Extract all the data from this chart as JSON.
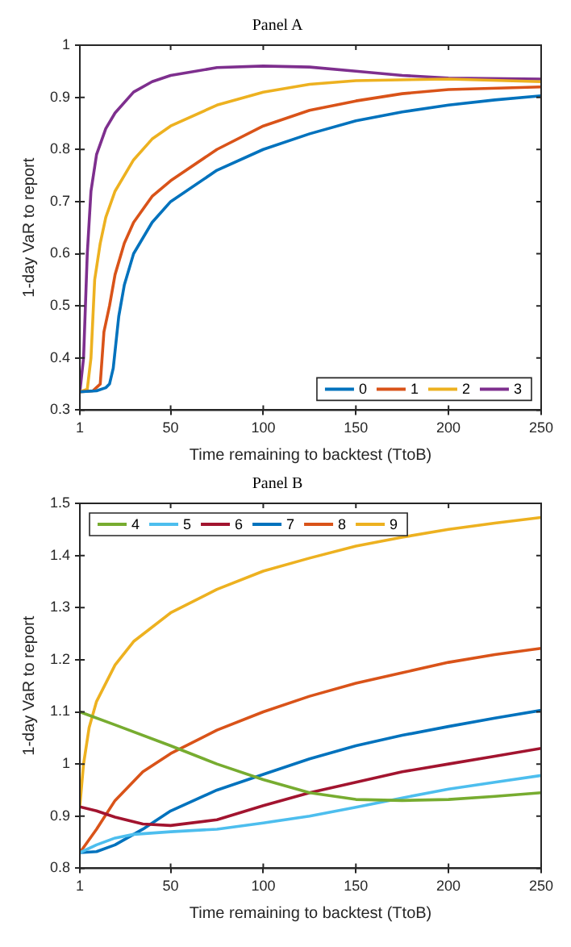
{
  "chart_data": [
    {
      "type": "line",
      "title": "Panel A",
      "xlabel": "Time remaining to backtest (TtoB)",
      "ylabel": "1-day VaR to report",
      "xlim": [
        1,
        250
      ],
      "xticks": [
        1,
        50,
        100,
        150,
        200,
        250
      ],
      "ylim": [
        0.3,
        1
      ],
      "yticks": [
        0.3,
        0.4,
        0.5,
        0.6,
        0.7,
        0.8,
        0.9,
        1
      ],
      "grid": false,
      "legend": "bottom right",
      "marker": "none",
      "line_style": "solid",
      "series": [
        {
          "name": "0",
          "color": "#0072bd",
          "x": [
            1,
            10,
            15,
            17,
            19,
            22,
            25,
            30,
            40,
            50,
            75,
            100,
            125,
            150,
            175,
            200,
            225,
            250
          ],
          "values": [
            0.335,
            0.337,
            0.343,
            0.35,
            0.38,
            0.48,
            0.54,
            0.6,
            0.66,
            0.7,
            0.76,
            0.8,
            0.83,
            0.855,
            0.872,
            0.885,
            0.895,
            0.903
          ]
        },
        {
          "name": "1",
          "color": "#d95319",
          "x": [
            1,
            8,
            12,
            14,
            17,
            20,
            25,
            30,
            40,
            50,
            75,
            100,
            125,
            150,
            175,
            200,
            250
          ],
          "values": [
            0.335,
            0.337,
            0.35,
            0.45,
            0.5,
            0.56,
            0.62,
            0.66,
            0.71,
            0.74,
            0.8,
            0.845,
            0.875,
            0.893,
            0.907,
            0.915,
            0.92
          ]
        },
        {
          "name": "2",
          "color": "#edb120",
          "x": [
            1,
            5,
            7,
            9,
            12,
            15,
            20,
            30,
            40,
            50,
            75,
            100,
            125,
            150,
            200,
            250
          ],
          "values": [
            0.335,
            0.34,
            0.4,
            0.55,
            0.62,
            0.67,
            0.72,
            0.78,
            0.82,
            0.845,
            0.885,
            0.91,
            0.925,
            0.932,
            0.935,
            0.93
          ]
        },
        {
          "name": "3",
          "color": "#7e2f8e",
          "x": [
            1,
            3,
            5,
            7,
            10,
            15,
            20,
            30,
            40,
            50,
            75,
            100,
            125,
            150,
            175,
            200,
            250
          ],
          "values": [
            0.335,
            0.4,
            0.6,
            0.72,
            0.79,
            0.84,
            0.87,
            0.91,
            0.93,
            0.942,
            0.957,
            0.96,
            0.958,
            0.95,
            0.942,
            0.937,
            0.935
          ]
        }
      ]
    },
    {
      "type": "line",
      "title": "Panel B",
      "xlabel": "Time remaining to backtest (TtoB)",
      "ylabel": "1-day VaR to report",
      "xlim": [
        1,
        250
      ],
      "xticks": [
        1,
        50,
        100,
        150,
        200,
        250
      ],
      "ylim": [
        0.8,
        1.5
      ],
      "yticks": [
        0.8,
        0.9,
        1,
        1.1,
        1.2,
        1.3,
        1.4,
        1.5
      ],
      "grid": false,
      "legend": "top left",
      "marker": "none",
      "line_style": "solid",
      "series": [
        {
          "name": "4",
          "color": "#77ac30",
          "x": [
            1,
            20,
            50,
            75,
            100,
            125,
            150,
            175,
            200,
            225,
            250
          ],
          "values": [
            1.1,
            1.075,
            1.035,
            1.0,
            0.97,
            0.945,
            0.932,
            0.93,
            0.932,
            0.938,
            0.945
          ]
        },
        {
          "name": "5",
          "color": "#4dbeee",
          "x": [
            1,
            10,
            20,
            30,
            50,
            75,
            100,
            125,
            150,
            175,
            200,
            225,
            250
          ],
          "values": [
            0.83,
            0.845,
            0.858,
            0.865,
            0.87,
            0.875,
            0.887,
            0.9,
            0.917,
            0.935,
            0.952,
            0.965,
            0.978
          ]
        },
        {
          "name": "6",
          "color": "#a2142f",
          "x": [
            1,
            10,
            20,
            35,
            50,
            75,
            100,
            125,
            150,
            175,
            200,
            225,
            250
          ],
          "values": [
            0.918,
            0.91,
            0.898,
            0.885,
            0.882,
            0.893,
            0.92,
            0.945,
            0.965,
            0.985,
            1.0,
            1.015,
            1.03
          ]
        },
        {
          "name": "7",
          "color": "#0072bd",
          "x": [
            1,
            10,
            20,
            35,
            50,
            75,
            100,
            125,
            150,
            175,
            200,
            225,
            250
          ],
          "values": [
            0.83,
            0.832,
            0.845,
            0.875,
            0.91,
            0.95,
            0.98,
            1.01,
            1.035,
            1.055,
            1.072,
            1.088,
            1.103
          ]
        },
        {
          "name": "8",
          "color": "#d95319",
          "x": [
            1,
            10,
            20,
            35,
            50,
            75,
            100,
            125,
            150,
            175,
            200,
            225,
            250
          ],
          "values": [
            0.83,
            0.875,
            0.93,
            0.985,
            1.02,
            1.065,
            1.1,
            1.13,
            1.155,
            1.175,
            1.195,
            1.21,
            1.222
          ]
        },
        {
          "name": "9",
          "color": "#edb120",
          "x": [
            1,
            3,
            6,
            10,
            20,
            30,
            50,
            75,
            100,
            125,
            150,
            175,
            200,
            225,
            250
          ],
          "values": [
            0.92,
            1.0,
            1.07,
            1.12,
            1.19,
            1.235,
            1.29,
            1.335,
            1.37,
            1.395,
            1.418,
            1.435,
            1.45,
            1.462,
            1.473
          ]
        }
      ]
    }
  ]
}
